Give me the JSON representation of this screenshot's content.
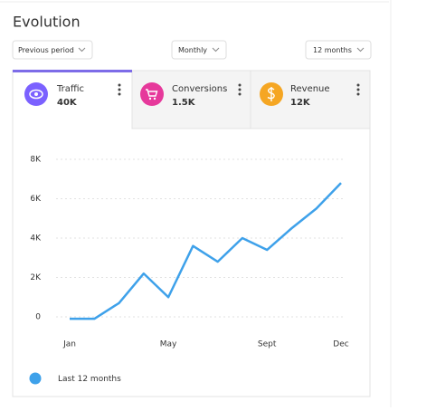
{
  "header": {
    "title": "Evolution"
  },
  "filters": [
    "Previous period",
    "Monthly",
    "12 months"
  ],
  "tabs": [
    {
      "label": "Traffic",
      "value": "40K"
    },
    {
      "label": "Conversions",
      "value": "1.5K"
    },
    {
      "label": "Revenue",
      "value": "12K"
    }
  ],
  "chart_data": {
    "type": "line",
    "categories": [
      "Jan",
      null,
      null,
      null,
      "May",
      null,
      null,
      null,
      "Sept",
      null,
      null,
      "Dec"
    ],
    "series": [
      {
        "name": "Last 12 months",
        "color": "#3ea1ea",
        "values": [
          -100,
          -100,
          700,
          2200,
          1000,
          3600,
          2800,
          4000,
          3400,
          4500,
          5500,
          6800
        ]
      }
    ],
    "ylim": [
      -500,
      8500
    ],
    "yticks": [
      0,
      {
        "value": 2000,
        "label": "2K"
      },
      {
        "value": 4000,
        "label": "4K"
      },
      {
        "value": 6000,
        "label": "6K"
      },
      {
        "value": 8000,
        "label": "8K"
      }
    ],
    "grid": true
  }
}
